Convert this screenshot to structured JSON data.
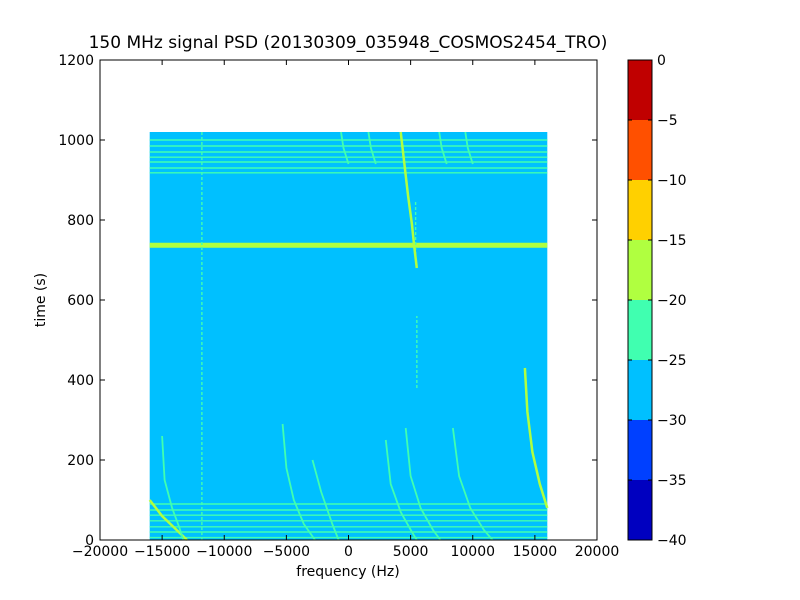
{
  "chart_data": {
    "type": "heatmap",
    "title": "150 MHz signal PSD (20130309_035948_COSMOS2454_TRO)",
    "xlabel": "frequency (Hz)",
    "ylabel": "time (s)",
    "xlim": [
      -20000,
      20000
    ],
    "ylim": [
      0,
      1200
    ],
    "xticks": [
      -20000,
      -15000,
      -10000,
      -5000,
      0,
      5000,
      10000,
      15000,
      20000
    ],
    "xtick_labels": [
      "−20000",
      "−15000",
      "−10000",
      "−5000",
      "0",
      "5000",
      "10000",
      "15000",
      "20000"
    ],
    "yticks": [
      0,
      200,
      400,
      600,
      800,
      1000,
      1200
    ],
    "ytick_labels": [
      "0",
      "200",
      "400",
      "600",
      "800",
      "1000",
      "1200"
    ],
    "grid": false,
    "data_extent": {
      "freq": [
        -16000,
        16000
      ],
      "time": [
        0,
        1020
      ]
    },
    "background_level": -27.5,
    "colorbar": {
      "levels": [
        -40,
        -35,
        -30,
        -25,
        -20,
        -15,
        -10,
        -5,
        0
      ],
      "tick_labels": [
        "−40",
        "−35",
        "−30",
        "−25",
        "−20",
        "−15",
        "−10",
        "−5",
        "0"
      ],
      "colors": [
        "#0000c0",
        "#0040ff",
        "#00c0ff",
        "#40ffb0",
        "#b0ff40",
        "#ffd000",
        "#ff5000",
        "#c00000"
      ]
    },
    "signals": {
      "horizontal_lines": [
        {
          "time": 737,
          "level": -17.5,
          "thick": true
        },
        {
          "time": 1000,
          "level": -22.5
        },
        {
          "time": 985,
          "level": -22.5
        },
        {
          "time": 970,
          "level": -22.5
        },
        {
          "time": 957,
          "level": -22.5
        },
        {
          "time": 945,
          "level": -22.5
        },
        {
          "time": 930,
          "level": -22.5
        },
        {
          "time": 918,
          "level": -22.5
        },
        {
          "time": 90,
          "level": -22.5
        },
        {
          "time": 75,
          "level": -22.5
        },
        {
          "time": 62,
          "level": -22.5
        },
        {
          "time": 48,
          "level": -22.5
        },
        {
          "time": 33,
          "level": -22.5
        },
        {
          "time": 20,
          "level": -22.5
        },
        {
          "time": 6,
          "level": -22.5
        }
      ],
      "vertical_lines": [
        {
          "freq": -11800,
          "time": [
            0,
            1020
          ],
          "level": -22.5
        },
        {
          "freq": 5500,
          "time": [
            380,
            560
          ],
          "level": -22.5
        },
        {
          "freq": 5400,
          "time": [
            700,
            850
          ],
          "level": -22.5
        }
      ],
      "curves": [
        {
          "level": -17.5,
          "points": [
            [
              -16000,
              100
            ],
            [
              -15000,
              60
            ],
            [
              -14000,
              30
            ],
            [
              -13000,
              0
            ]
          ]
        },
        {
          "level": -22.5,
          "points": [
            [
              -15000,
              260
            ],
            [
              -14800,
              150
            ],
            [
              -14200,
              80
            ],
            [
              -13600,
              30
            ],
            [
              -13300,
              0
            ]
          ]
        },
        {
          "level": -22.5,
          "points": [
            [
              -5300,
              290
            ],
            [
              -5000,
              180
            ],
            [
              -4400,
              100
            ],
            [
              -3600,
              40
            ],
            [
              -2700,
              0
            ]
          ]
        },
        {
          "level": -22.5,
          "points": [
            [
              -2900,
              200
            ],
            [
              -2200,
              120
            ],
            [
              -1300,
              40
            ],
            [
              -800,
              0
            ]
          ]
        },
        {
          "level": -22.5,
          "points": [
            [
              3000,
              250
            ],
            [
              3400,
              140
            ],
            [
              4200,
              70
            ],
            [
              5100,
              20
            ],
            [
              5500,
              0
            ]
          ]
        },
        {
          "level": -22.5,
          "points": [
            [
              4600,
              280
            ],
            [
              5000,
              160
            ],
            [
              5800,
              80
            ],
            [
              6800,
              25
            ],
            [
              7400,
              0
            ]
          ]
        },
        {
          "level": -22.5,
          "points": [
            [
              8400,
              280
            ],
            [
              8900,
              160
            ],
            [
              9800,
              80
            ],
            [
              10900,
              25
            ],
            [
              11600,
              0
            ]
          ]
        },
        {
          "level": -17.5,
          "points": [
            [
              14200,
              430
            ],
            [
              14400,
              320
            ],
            [
              14800,
              220
            ],
            [
              15400,
              140
            ],
            [
              16000,
              80
            ]
          ]
        },
        {
          "level": -17.5,
          "points": [
            [
              4200,
              1020
            ],
            [
              4500,
              940
            ],
            [
              4800,
              860
            ],
            [
              5100,
              790
            ],
            [
              5300,
              730
            ],
            [
              5500,
              680
            ]
          ]
        },
        {
          "level": -22.5,
          "points": [
            [
              -600,
              1020
            ],
            [
              -400,
              980
            ],
            [
              0,
              940
            ]
          ]
        },
        {
          "level": -22.5,
          "points": [
            [
              1600,
              1020
            ],
            [
              1800,
              980
            ],
            [
              2200,
              940
            ]
          ]
        },
        {
          "level": -22.5,
          "points": [
            [
              7300,
              1020
            ],
            [
              7500,
              980
            ],
            [
              7900,
              940
            ]
          ]
        },
        {
          "level": -22.5,
          "points": [
            [
              9400,
              1020
            ],
            [
              9600,
              980
            ],
            [
              10000,
              940
            ]
          ]
        }
      ]
    }
  }
}
